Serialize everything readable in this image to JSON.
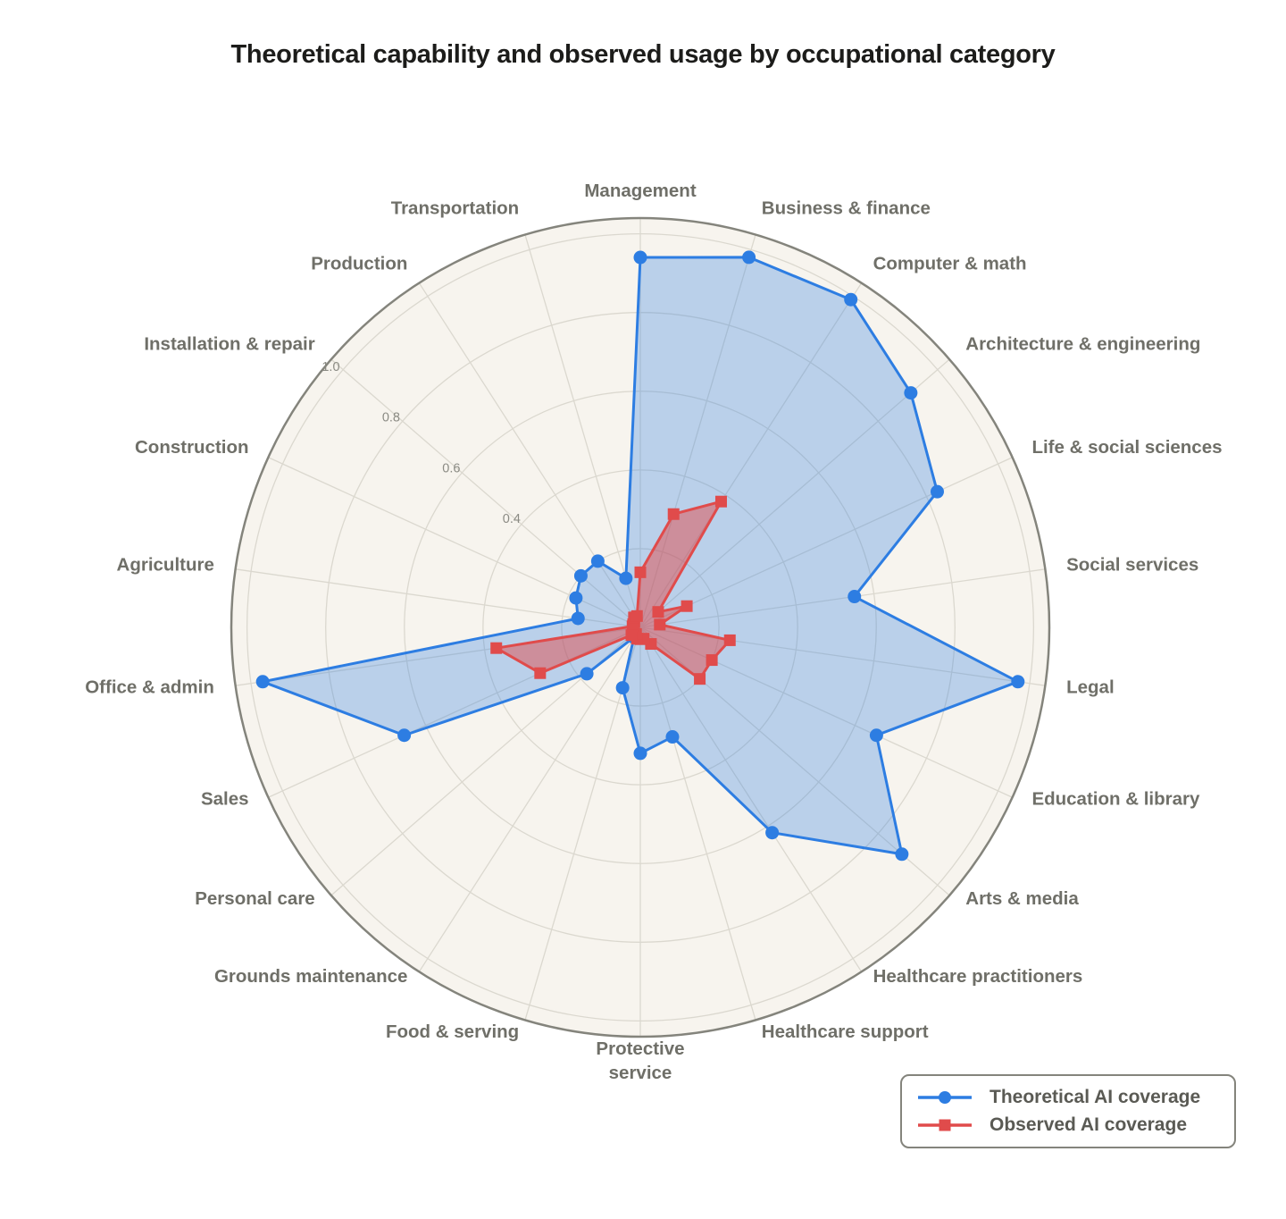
{
  "title": "Theoretical capability and observed usage by occupational category",
  "colors": {
    "background": "#ffffff",
    "polar_background": "#f7f4ee",
    "grid": "#dbd8cf",
    "outer_ring": "#84847c",
    "category_label": "#6f6f68",
    "tick_label": "#8b8b84",
    "title": "#1c1c1a",
    "legend_text": "#5a5a54",
    "legend_border": "#84847c",
    "theoretical_blue": "#2d7de2",
    "observed_red": "#e04b4b"
  },
  "chart_data": {
    "type": "radar",
    "title": "Theoretical capability and observed usage by occupational category",
    "categories": [
      "Management",
      "Business & finance",
      "Computer & math",
      "Architecture & engineering",
      "Life & social sciences",
      "Social services",
      "Legal",
      "Education & library",
      "Arts & media",
      "Healthcare practitioners",
      "Healthcare support",
      "Protective\nservice",
      "Food & serving",
      "Grounds maintenance",
      "Personal care",
      "Sales",
      "Office & admin",
      "Agriculture",
      "Construction",
      "Installation & repair",
      "Production",
      "Transportation"
    ],
    "series": [
      {
        "name": "Theoretical AI coverage",
        "marker": "circle",
        "color": "#2d7de2",
        "fill_opacity": 0.3,
        "values": [
          0.94,
          0.98,
          0.99,
          0.91,
          0.83,
          0.55,
          0.97,
          0.66,
          0.88,
          0.62,
          0.29,
          0.32,
          0.16,
          0.03,
          0.18,
          0.66,
          0.97,
          0.16,
          0.18,
          0.2,
          0.2,
          0.13
        ]
      },
      {
        "name": "Observed AI coverage",
        "marker": "square",
        "color": "#e04b4b",
        "fill_opacity": 0.5,
        "values": [
          0.14,
          0.3,
          0.38,
          0.06,
          0.13,
          0.05,
          0.23,
          0.2,
          0.2,
          0.05,
          0.03,
          0.03,
          0.03,
          0.02,
          0.03,
          0.28,
          0.37,
          0.02,
          0.02,
          0.02,
          0.03,
          0.03
        ]
      }
    ],
    "r_ticks": [
      0.2,
      0.4,
      0.6,
      0.8,
      1.0
    ],
    "r_tick_labels": [
      "0.4",
      "0.6",
      "0.8",
      "1.0"
    ],
    "rmax": 1.04,
    "tick_label_angle_deg": 140,
    "start_angle_deg": 90,
    "direction": "clockwise",
    "grid": true,
    "legend_position": "bottom-right"
  }
}
